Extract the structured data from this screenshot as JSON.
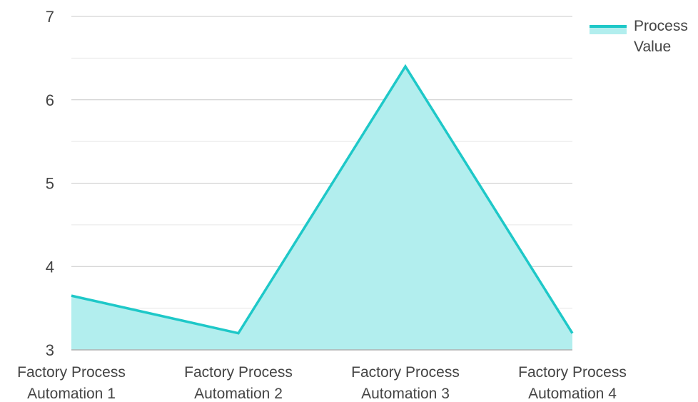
{
  "chart_data": {
    "type": "area",
    "categories": [
      "Factory Process Automation 1",
      "Factory Process Automation 2",
      "Factory Process Automation 3",
      "Factory Process Automation 4"
    ],
    "series": [
      {
        "name": "Process Value",
        "values": [
          3.65,
          3.2,
          6.4,
          3.2
        ]
      }
    ],
    "ylim": [
      3,
      7
    ],
    "yticks": [
      3,
      4,
      5,
      6,
      7
    ],
    "grid": true,
    "minor_gridlines": true,
    "legend_position": "top-right",
    "colors": {
      "line": "#1ec8c8",
      "fill": "#b2eeee",
      "grid": "#c8c8c8",
      "minor_grid": "#e6e6e6",
      "axis": "#b0b0b0"
    }
  },
  "legend": {
    "label": "Process Value"
  }
}
